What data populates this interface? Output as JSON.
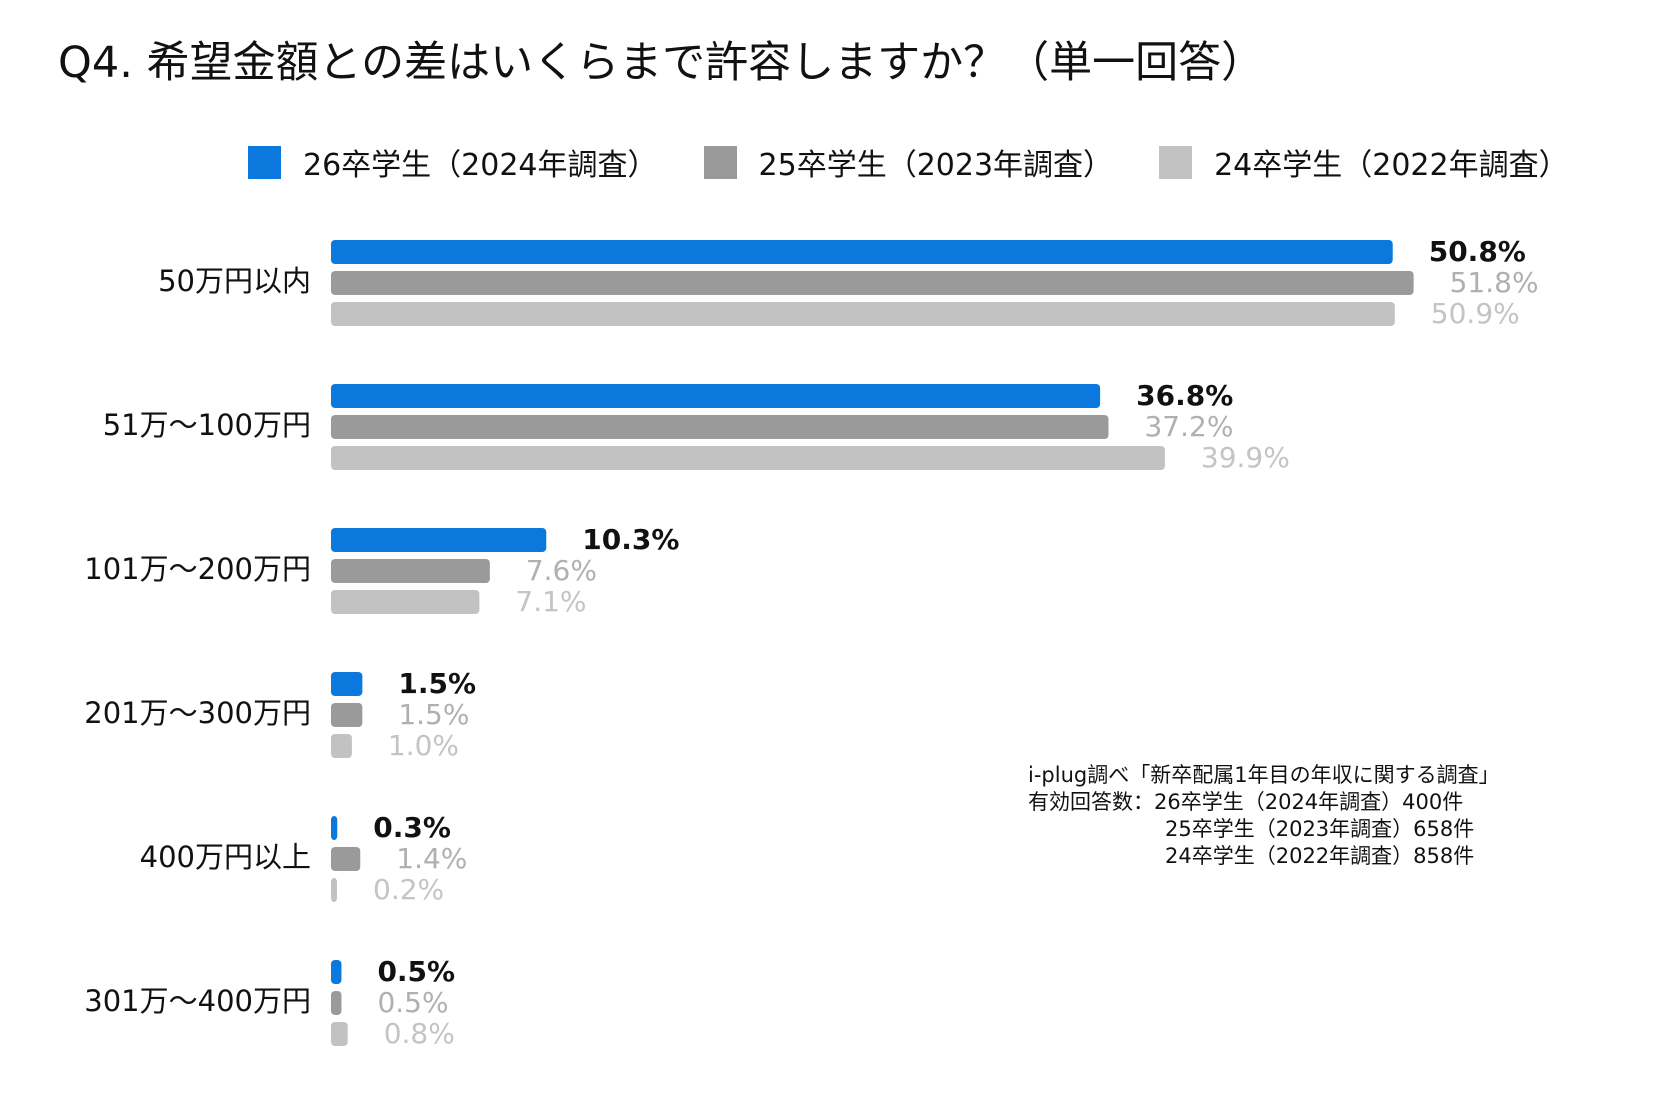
{
  "title": "Q4. 希望金額との差はいくらまで許容しますか？（単一回答）",
  "legend": [
    {
      "label": "26卒学生（2024年調査）",
      "color": "#0a78dd"
    },
    {
      "label": "25卒学生（2023年調査）",
      "color": "#9a9a9a"
    },
    {
      "label": "24卒学生（2022年調査）",
      "color": "#c2c2c2"
    }
  ],
  "chart_data": {
    "type": "bar",
    "orientation": "horizontal",
    "title": "Q4. 希望金額との差はいくらまで許容しますか？（単一回答）",
    "categories": [
      "50万円以内",
      "51万～100万円",
      "101万～200万円",
      "201万～300万円",
      "400万円以上",
      "301万～400万円"
    ],
    "series": [
      {
        "name": "26卒学生（2024年調査）",
        "color": "#0a78dd",
        "label_color": "#111111",
        "bold": true,
        "values": [
          50.8,
          36.8,
          10.3,
          1.5,
          0.3,
          0.5
        ],
        "labels": [
          "50.8%",
          "36.8%",
          "10.3%",
          "1.5%",
          "0.3%",
          "0.5%"
        ]
      },
      {
        "name": "25卒学生（2023年調査）",
        "color": "#9a9a9a",
        "label_color": "#b0b0b0",
        "bold": false,
        "values": [
          51.8,
          37.2,
          7.6,
          1.5,
          1.4,
          0.5
        ],
        "labels": [
          "51.8%",
          "37.2%",
          "7.6%",
          "1.5%",
          "1.4%",
          "0.5%"
        ]
      },
      {
        "name": "24卒学生（2022年調査）",
        "color": "#c2c2c2",
        "label_color": "#c4c4c4",
        "bold": false,
        "values": [
          50.9,
          39.9,
          7.1,
          1.0,
          0.2,
          0.8
        ],
        "labels": [
          "50.9%",
          "39.9%",
          "7.1%",
          "1.0%",
          "0.2%",
          "0.8%"
        ]
      }
    ],
    "xlabel": "",
    "ylabel": "",
    "xlim": [
      0,
      55
    ],
    "grid": false,
    "legend_position": "top"
  },
  "note": {
    "source": "i-plug調べ「新卒配属1年目の年収に関する調査」",
    "n_label": "有効回答数：",
    "n_lines": [
      "26卒学生（2024年調査）400件",
      "25卒学生（2023年調査）658件",
      "24卒学生（2022年調査）858件"
    ]
  }
}
